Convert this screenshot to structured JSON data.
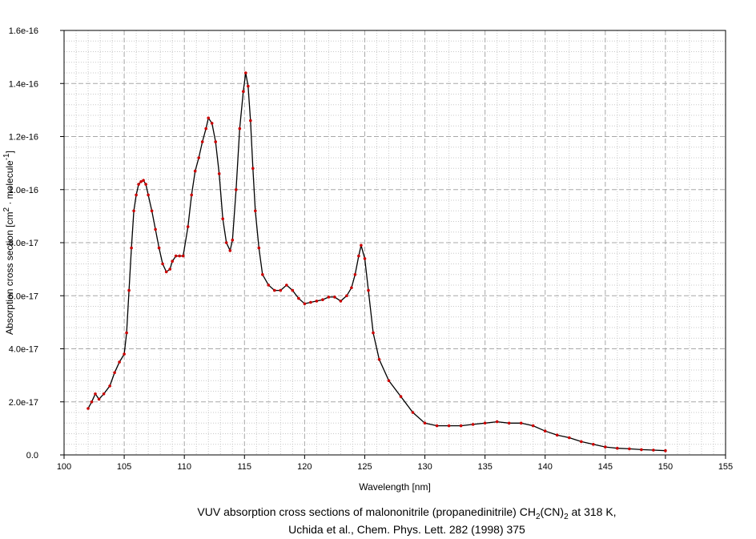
{
  "chart_data": {
    "type": "line",
    "xlabel": "Wavelength [nm]",
    "ylabel": {
      "prefix": "Absorption cross section [cm",
      "exp1": "2",
      "mid": " · molecule",
      "exp2": "-1",
      "suffix": "]"
    },
    "caption": {
      "line1_prefix": "VUV absorption cross sections of malononitrile (propanedinitrile) CH",
      "line1_sub1": "2",
      "line1_mid": "(CN)",
      "line1_sub2": "2",
      "line1_suffix": " at 318 K,",
      "line2": "Uchida et al., Chem. Phys. Lett. 282 (1998) 375"
    },
    "xlim": [
      100,
      155
    ],
    "ylim": [
      0,
      1.6e-16
    ],
    "x_ticks": [
      100,
      105,
      110,
      115,
      120,
      125,
      130,
      135,
      140,
      145,
      150,
      155
    ],
    "x_tick_labels": [
      "100",
      "105",
      "110",
      "115",
      "120",
      "125",
      "130",
      "135",
      "140",
      "145",
      "150",
      "155"
    ],
    "y_ticks": [
      0,
      2e-17,
      4e-17,
      6e-17,
      8e-17,
      1e-16,
      1.2e-16,
      1.4e-16,
      1.6e-16
    ],
    "y_tick_labels": [
      "0.0",
      "2.0e-17",
      "4.0e-17",
      "6.0e-17",
      "8.0e-17",
      "1.0e-16",
      "1.2e-16",
      "1.4e-16",
      "1.6e-16"
    ],
    "grid": true,
    "line_color": "#000000",
    "marker_color": "#cc0000",
    "series": [
      {
        "x": [
          102.0,
          102.3,
          102.6,
          102.9,
          103.3,
          103.8,
          104.2,
          104.6,
          105.0,
          105.2,
          105.4,
          105.6,
          105.8,
          106.0,
          106.2,
          106.4,
          106.6,
          106.8,
          107.0,
          107.3,
          107.6,
          107.9,
          108.2,
          108.5,
          108.8,
          109.0,
          109.3,
          109.6,
          109.9,
          110.3,
          110.6,
          110.9,
          111.2,
          111.5,
          111.8,
          112.0,
          112.3,
          112.6,
          112.9,
          113.2,
          113.5,
          113.8,
          114.0,
          114.3,
          114.6,
          114.9,
          115.1,
          115.3,
          115.5,
          115.7,
          115.9,
          116.2,
          116.5,
          117.0,
          117.5,
          118.0,
          118.5,
          119.0,
          119.5,
          120.0,
          120.5,
          121.0,
          121.5,
          122.0,
          122.5,
          123.0,
          123.5,
          123.9,
          124.2,
          124.5,
          124.7,
          125.0,
          125.3,
          125.7,
          126.2,
          127.0,
          128.0,
          129.0,
          130.0,
          131.0,
          132.0,
          133.0,
          134.0,
          135.0,
          136.0,
          137.0,
          138.0,
          139.0,
          140.0,
          141.0,
          142.0,
          143.0,
          144.0,
          145.0,
          146.0,
          147.0,
          148.0,
          149.0,
          150.0
        ],
        "y": [
          1.75e-17,
          2e-17,
          2.3e-17,
          2.1e-17,
          2.3e-17,
          2.6e-17,
          3.1e-17,
          3.5e-17,
          3.8e-17,
          4.6e-17,
          6.2e-17,
          7.8e-17,
          9.2e-17,
          9.8e-17,
          1.02e-16,
          1.03e-16,
          1.035e-16,
          1.02e-16,
          9.8e-17,
          9.2e-17,
          8.5e-17,
          7.8e-17,
          7.2e-17,
          6.9e-17,
          7e-17,
          7.3e-17,
          7.5e-17,
          7.5e-17,
          7.5e-17,
          8.6e-17,
          9.8e-17,
          1.07e-16,
          1.12e-16,
          1.18e-16,
          1.23e-16,
          1.27e-16,
          1.25e-16,
          1.18e-16,
          1.06e-16,
          8.9e-17,
          8e-17,
          7.7e-17,
          8.1e-17,
          1e-16,
          1.23e-16,
          1.37e-16,
          1.44e-16,
          1.39e-16,
          1.26e-16,
          1.08e-16,
          9.2e-17,
          7.8e-17,
          6.8e-17,
          6.4e-17,
          6.2e-17,
          6.2e-17,
          6.4e-17,
          6.2e-17,
          5.9e-17,
          5.7e-17,
          5.75e-17,
          5.8e-17,
          5.85e-17,
          5.95e-17,
          5.95e-17,
          5.8e-17,
          6e-17,
          6.3e-17,
          6.8e-17,
          7.5e-17,
          7.9e-17,
          7.4e-17,
          6.2e-17,
          4.6e-17,
          3.6e-17,
          2.8e-17,
          2.2e-17,
          1.6e-17,
          1.2e-17,
          1.1e-17,
          1.1e-17,
          1.1e-17,
          1.15e-17,
          1.2e-17,
          1.25e-17,
          1.2e-17,
          1.2e-17,
          1.1e-17,
          9e-18,
          7.5e-18,
          6.5e-18,
          5e-18,
          4e-18,
          3e-18,
          2.5e-18,
          2.3e-18,
          2e-18,
          1.8e-18,
          1.6e-18
        ]
      }
    ]
  }
}
